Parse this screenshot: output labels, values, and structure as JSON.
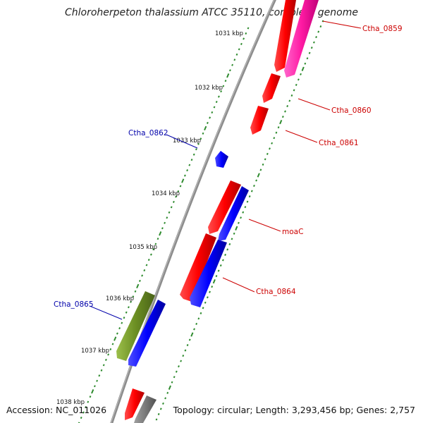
{
  "title": "Chloroherpeton thalassium ATCC 35110, complete genome",
  "accession": "Accession: NC_011026",
  "topology": "Topology: circular; Length: 3,293,456 bp; Genes: 2,757",
  "colors": {
    "backbone": "#808080",
    "tick": "#2e8b2e",
    "label_forward": "#cc0000",
    "label_reverse": "#0000aa"
  },
  "kbp_labels": [
    "1031 kbp",
    "1032 kbp",
    "1033 kbp",
    "1034 kbp",
    "1035 kbp",
    "1036 kbp",
    "1037 kbp",
    "1038 kbp"
  ],
  "gene_labels": [
    "Ctha_0859",
    "Ctha_0860",
    "Ctha_0861",
    "Ctha_0862",
    "moaC",
    "Ctha_0864",
    "Ctha_0865"
  ]
}
